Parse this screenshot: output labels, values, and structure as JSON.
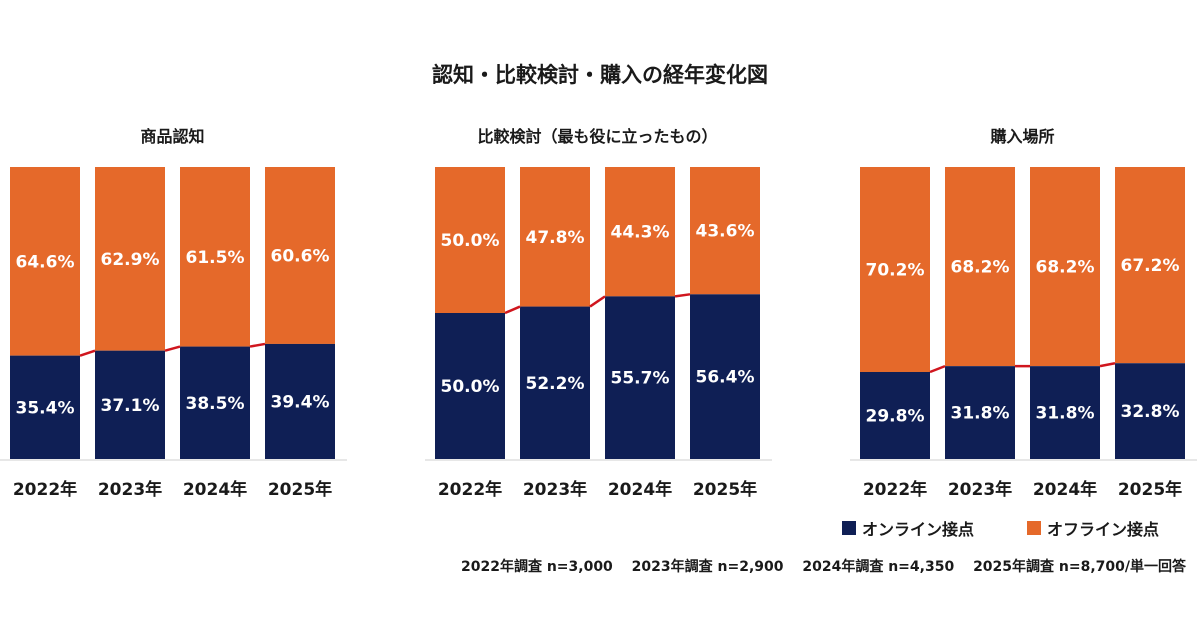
{
  "chart_data": {
    "type": "bar",
    "stacked": true,
    "title": "認知・比較検討・購入の経年変化図",
    "categories": [
      "2022年",
      "2023年",
      "2024年",
      "2025年"
    ],
    "ylim": [
      0,
      100
    ],
    "legend": {
      "placement": "bottom-right",
      "entries": [
        {
          "name": "オンライン接点",
          "color": "#0f1f55"
        },
        {
          "name": "オフライン接点",
          "color": "#e5692a"
        }
      ]
    },
    "connector_color": "#d0161e",
    "panels": [
      {
        "title": "商品認知",
        "series": [
          {
            "name": "オンライン接点",
            "values": [
              35.4,
              37.1,
              38.5,
              39.4
            ],
            "labels": [
              "35.4%",
              "37.1%",
              "38.5%",
              "39.4%"
            ]
          },
          {
            "name": "オフライン接点",
            "values": [
              64.6,
              62.9,
              61.5,
              60.6
            ],
            "labels": [
              "64.6%",
              "62.9%",
              "61.5%",
              "60.6%"
            ]
          }
        ]
      },
      {
        "title": "比較検討（最も役に立ったもの）",
        "series": [
          {
            "name": "オンライン接点",
            "values": [
              50.0,
              52.2,
              55.7,
              56.4
            ],
            "labels": [
              "50.0%",
              "52.2%",
              "55.7%",
              "56.4%"
            ]
          },
          {
            "name": "オフライン接点",
            "values": [
              50.0,
              47.8,
              44.3,
              43.6
            ],
            "labels": [
              "50.0%",
              "47.8%",
              "44.3%",
              "43.6%"
            ]
          }
        ]
      },
      {
        "title": "購入場所",
        "series": [
          {
            "name": "オンライン接点",
            "values": [
              29.8,
              31.8,
              31.8,
              32.8
            ],
            "labels": [
              "29.8%",
              "31.8%",
              "31.8%",
              "32.8%"
            ]
          },
          {
            "name": "オフライン接点",
            "values": [
              70.2,
              68.2,
              68.2,
              67.2
            ],
            "labels": [
              "70.2%",
              "68.2%",
              "68.2%",
              "67.2%"
            ]
          }
        ]
      }
    ],
    "note": "2022年調査 n=3,000　 2023年調査 n=2,900　 2024年調査 n=4,350　 2025年調査 n=8,700/単一回答"
  }
}
